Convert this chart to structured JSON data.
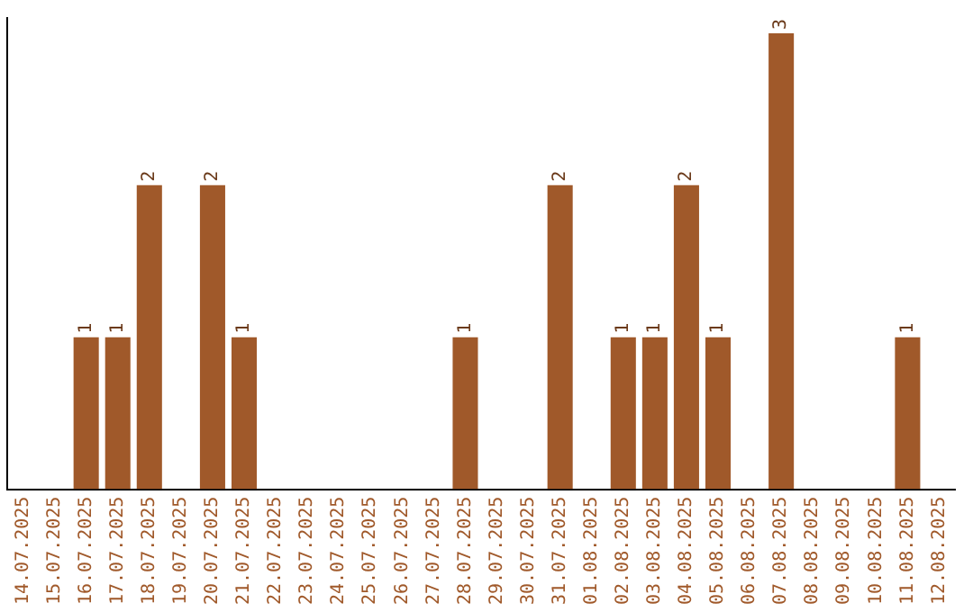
{
  "chart_data": {
    "type": "bar",
    "categories": [
      "14.07.2025",
      "15.07.2025",
      "16.07.2025",
      "17.07.2025",
      "18.07.2025",
      "19.07.2025",
      "20.07.2025",
      "21.07.2025",
      "22.07.2025",
      "23.07.2025",
      "24.07.2025",
      "25.07.2025",
      "26.07.2025",
      "27.07.2025",
      "28.07.2025",
      "29.07.2025",
      "30.07.2025",
      "31.07.2025",
      "01.08.2025",
      "02.08.2025",
      "03.08.2025",
      "04.08.2025",
      "05.08.2025",
      "06.08.2025",
      "07.08.2025",
      "08.08.2025",
      "09.08.2025",
      "10.08.2025",
      "11.08.2025",
      "12.08.2025"
    ],
    "values": [
      0,
      0,
      1,
      1,
      2,
      0,
      2,
      1,
      0,
      0,
      0,
      0,
      0,
      0,
      1,
      0,
      0,
      2,
      0,
      1,
      1,
      2,
      1,
      0,
      3,
      0,
      0,
      0,
      1,
      0
    ],
    "value_labels": [
      null,
      null,
      "1",
      "1",
      "2",
      null,
      "2",
      "1",
      null,
      null,
      null,
      null,
      null,
      null,
      "1",
      null,
      null,
      "2",
      null,
      "1",
      "1",
      "2",
      "1",
      null,
      "3",
      null,
      null,
      null,
      "1",
      null
    ],
    "color": "#a0592a",
    "ylim": [
      0,
      3.1
    ],
    "tick_labels": "x",
    "grid": false,
    "legend": false
  }
}
